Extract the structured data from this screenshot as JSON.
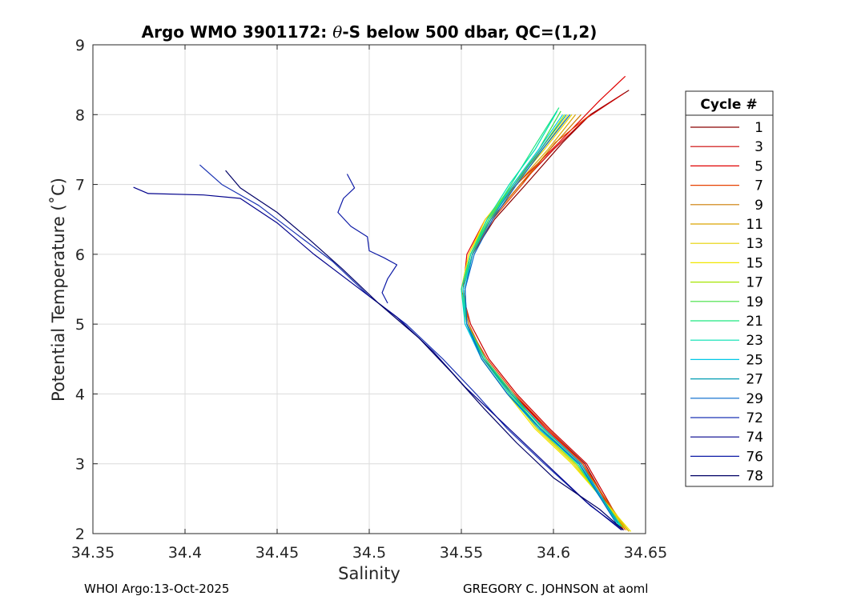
{
  "chart_data": {
    "type": "line",
    "title_parts": {
      "before": "Argo WMO 3901172: ",
      "theta": "θ",
      "after": "-S below 500 dbar,  QC=(1,2)"
    },
    "xlabel": "Salinity",
    "ylabel": "Potential Temperature (˚C)",
    "xlim": [
      34.35,
      34.65
    ],
    "ylim": [
      2,
      9
    ],
    "xticks": [
      "34.35",
      "34.4",
      "34.45",
      "34.5",
      "34.55",
      "34.6",
      "34.65"
    ],
    "yticks": [
      "2",
      "3",
      "4",
      "5",
      "6",
      "7",
      "8",
      "9"
    ],
    "grid": true,
    "legend_title": "Cycle #",
    "legend_position": "outside-right",
    "series": [
      {
        "name": "1",
        "color": "#8b0000",
        "values": [
          [
            34.641,
            8.35
          ],
          [
            34.62,
            8.0
          ],
          [
            34.605,
            7.6
          ],
          [
            34.585,
            7.0
          ],
          [
            34.568,
            6.5
          ],
          [
            34.556,
            6.0
          ],
          [
            34.551,
            5.5
          ],
          [
            34.553,
            5.0
          ],
          [
            34.562,
            4.5
          ],
          [
            34.578,
            4.0
          ],
          [
            34.597,
            3.5
          ],
          [
            34.617,
            3.0
          ],
          [
            34.637,
            2.08
          ]
        ]
      },
      {
        "name": "3",
        "color": "#cc0000",
        "values": [
          [
            34.638,
            8.3
          ],
          [
            34.618,
            7.95
          ],
          [
            34.6,
            7.5
          ],
          [
            34.582,
            7.0
          ],
          [
            34.566,
            6.5
          ],
          [
            34.555,
            6.0
          ],
          [
            34.55,
            5.5
          ],
          [
            34.555,
            5.0
          ],
          [
            34.565,
            4.5
          ],
          [
            34.58,
            4.0
          ],
          [
            34.598,
            3.5
          ],
          [
            34.618,
            3.0
          ],
          [
            34.638,
            2.08
          ]
        ]
      },
      {
        "name": "5",
        "color": "#e00000",
        "values": [
          [
            34.639,
            8.55
          ],
          [
            34.625,
            8.2
          ],
          [
            34.603,
            7.6
          ],
          [
            34.58,
            7.0
          ],
          [
            34.563,
            6.5
          ],
          [
            34.553,
            6.0
          ],
          [
            34.551,
            5.5
          ],
          [
            34.554,
            5.0
          ],
          [
            34.563,
            4.5
          ],
          [
            34.578,
            4.0
          ],
          [
            34.596,
            3.5
          ],
          [
            34.616,
            3.0
          ],
          [
            34.638,
            2.05
          ]
        ]
      },
      {
        "name": "7",
        "color": "#e64000",
        "values": [
          [
            34.62,
            8.0
          ],
          [
            34.601,
            7.6
          ],
          [
            34.583,
            7.0
          ],
          [
            34.567,
            6.5
          ],
          [
            34.556,
            6.0
          ],
          [
            34.551,
            5.5
          ],
          [
            34.553,
            5.0
          ],
          [
            34.564,
            4.5
          ],
          [
            34.579,
            4.0
          ],
          [
            34.597,
            3.5
          ],
          [
            34.616,
            3.0
          ],
          [
            34.639,
            2.05
          ]
        ]
      },
      {
        "name": "9",
        "color": "#cc7a00",
        "values": [
          [
            34.615,
            8.0
          ],
          [
            34.598,
            7.5
          ],
          [
            34.582,
            7.0
          ],
          [
            34.566,
            6.5
          ],
          [
            34.555,
            6.0
          ],
          [
            34.551,
            5.5
          ],
          [
            34.554,
            5.0
          ],
          [
            34.563,
            4.5
          ],
          [
            34.577,
            4.0
          ],
          [
            34.595,
            3.5
          ],
          [
            34.615,
            3.0
          ],
          [
            34.64,
            2.05
          ]
        ]
      },
      {
        "name": "11",
        "color": "#d9a400",
        "values": [
          [
            34.612,
            8.0
          ],
          [
            34.597,
            7.5
          ],
          [
            34.58,
            7.0
          ],
          [
            34.565,
            6.5
          ],
          [
            34.555,
            6.0
          ],
          [
            34.55,
            5.5
          ],
          [
            34.553,
            5.0
          ],
          [
            34.561,
            4.5
          ],
          [
            34.575,
            4.0
          ],
          [
            34.592,
            3.5
          ],
          [
            34.612,
            3.0
          ],
          [
            34.641,
            2.03
          ]
        ]
      },
      {
        "name": "13",
        "color": "#e6d200",
        "values": [
          [
            34.61,
            8.0
          ],
          [
            34.595,
            7.5
          ],
          [
            34.579,
            7.0
          ],
          [
            34.564,
            6.5
          ],
          [
            34.554,
            6.0
          ],
          [
            34.55,
            5.5
          ],
          [
            34.553,
            5.0
          ],
          [
            34.562,
            4.5
          ],
          [
            34.576,
            4.0
          ],
          [
            34.591,
            3.5
          ],
          [
            34.611,
            3.0
          ],
          [
            34.64,
            2.05
          ]
        ]
      },
      {
        "name": "15",
        "color": "#f0e600",
        "values": [
          [
            34.608,
            8.0
          ],
          [
            34.594,
            7.5
          ],
          [
            34.578,
            7.0
          ],
          [
            34.563,
            6.5
          ],
          [
            34.554,
            6.0
          ],
          [
            34.55,
            5.5
          ],
          [
            34.553,
            5.0
          ],
          [
            34.561,
            4.5
          ],
          [
            34.575,
            4.0
          ],
          [
            34.59,
            3.5
          ],
          [
            34.61,
            3.0
          ],
          [
            34.642,
            2.03
          ]
        ]
      },
      {
        "name": "17",
        "color": "#a6e600",
        "values": [
          [
            34.606,
            8.0
          ],
          [
            34.593,
            7.5
          ],
          [
            34.578,
            7.0
          ],
          [
            34.564,
            6.5
          ],
          [
            34.555,
            6.0
          ],
          [
            34.55,
            5.5
          ],
          [
            34.553,
            5.0
          ],
          [
            34.562,
            4.5
          ],
          [
            34.576,
            4.0
          ],
          [
            34.592,
            3.5
          ],
          [
            34.612,
            3.0
          ],
          [
            34.638,
            2.08
          ]
        ]
      },
      {
        "name": "19",
        "color": "#40e040",
        "values": [
          [
            34.604,
            8.05
          ],
          [
            34.592,
            7.5
          ],
          [
            34.578,
            7.0
          ],
          [
            34.565,
            6.5
          ],
          [
            34.555,
            6.0
          ],
          [
            34.551,
            5.5
          ],
          [
            34.553,
            5.0
          ],
          [
            34.563,
            4.5
          ],
          [
            34.577,
            4.0
          ],
          [
            34.593,
            3.5
          ],
          [
            34.613,
            3.0
          ],
          [
            34.637,
            2.1
          ]
        ]
      },
      {
        "name": "21",
        "color": "#1ee680",
        "values": [
          [
            34.603,
            8.1
          ],
          [
            34.591,
            7.6
          ],
          [
            34.577,
            7.0
          ],
          [
            34.565,
            6.5
          ],
          [
            34.556,
            6.0
          ],
          [
            34.551,
            5.5
          ],
          [
            34.553,
            5.0
          ],
          [
            34.563,
            4.5
          ],
          [
            34.578,
            4.0
          ],
          [
            34.594,
            3.5
          ],
          [
            34.614,
            3.0
          ],
          [
            34.637,
            2.1
          ]
        ]
      },
      {
        "name": "23",
        "color": "#00e0b0",
        "values": [
          [
            34.602,
            8.05
          ],
          [
            34.59,
            7.5
          ],
          [
            34.576,
            7.0
          ],
          [
            34.564,
            6.5
          ],
          [
            34.555,
            6.0
          ],
          [
            34.55,
            5.5
          ],
          [
            34.552,
            5.0
          ],
          [
            34.562,
            4.5
          ],
          [
            34.576,
            4.0
          ],
          [
            34.593,
            3.5
          ],
          [
            34.613,
            3.0
          ],
          [
            34.636,
            2.1
          ]
        ]
      },
      {
        "name": "25",
        "color": "#00c8e6",
        "values": [
          [
            34.605,
            8.0
          ],
          [
            34.592,
            7.5
          ],
          [
            34.578,
            7.0
          ],
          [
            34.566,
            6.5
          ],
          [
            34.556,
            6.0
          ],
          [
            34.551,
            5.5
          ],
          [
            34.552,
            5.0
          ],
          [
            34.561,
            4.5
          ],
          [
            34.575,
            4.0
          ],
          [
            34.592,
            3.5
          ],
          [
            34.614,
            3.0
          ],
          [
            34.636,
            2.12
          ]
        ]
      },
      {
        "name": "27",
        "color": "#009cb3",
        "values": [
          [
            34.607,
            8.0
          ],
          [
            34.593,
            7.5
          ],
          [
            34.579,
            7.0
          ],
          [
            34.566,
            6.5
          ],
          [
            34.556,
            6.0
          ],
          [
            34.552,
            5.5
          ],
          [
            34.553,
            5.0
          ],
          [
            34.562,
            4.5
          ],
          [
            34.577,
            4.0
          ],
          [
            34.595,
            3.5
          ],
          [
            34.615,
            3.0
          ],
          [
            34.635,
            2.15
          ]
        ]
      },
      {
        "name": "29",
        "color": "#0066cc",
        "values": [
          [
            34.609,
            8.0
          ],
          [
            34.594,
            7.5
          ],
          [
            34.58,
            7.0
          ],
          [
            34.567,
            6.5
          ],
          [
            34.557,
            6.0
          ],
          [
            34.552,
            5.5
          ],
          [
            34.553,
            5.0
          ],
          [
            34.561,
            4.5
          ],
          [
            34.575,
            4.0
          ],
          [
            34.593,
            3.5
          ],
          [
            34.614,
            3.0
          ],
          [
            34.634,
            2.15
          ]
        ]
      },
      {
        "name": "72",
        "color": "#1a33b3",
        "values": [
          [
            34.408,
            7.28
          ],
          [
            34.42,
            7.0
          ],
          [
            34.44,
            6.7
          ],
          [
            34.46,
            6.3
          ],
          [
            34.48,
            5.9
          ],
          [
            34.5,
            5.4
          ],
          [
            34.52,
            5.0
          ],
          [
            34.54,
            4.5
          ],
          [
            34.558,
            4.0
          ],
          [
            34.575,
            3.5
          ],
          [
            34.595,
            3.0
          ],
          [
            34.62,
            2.4
          ],
          [
            34.638,
            2.05
          ]
        ]
      },
      {
        "name": "74",
        "color": "#00008b",
        "values": [
          [
            34.372,
            6.96
          ],
          [
            34.38,
            6.87
          ],
          [
            34.41,
            6.85
          ],
          [
            34.43,
            6.8
          ],
          [
            34.45,
            6.45
          ],
          [
            34.47,
            6.0
          ],
          [
            34.49,
            5.6
          ],
          [
            34.515,
            5.1
          ],
          [
            34.535,
            4.6
          ],
          [
            34.552,
            4.1
          ],
          [
            34.572,
            3.6
          ],
          [
            34.592,
            3.1
          ],
          [
            34.618,
            2.45
          ],
          [
            34.637,
            2.05
          ]
        ]
      },
      {
        "name": "76",
        "color": "#0d1aa6",
        "values": [
          [
            34.488,
            7.15
          ],
          [
            34.492,
            6.95
          ],
          [
            34.486,
            6.8
          ],
          [
            34.483,
            6.6
          ],
          [
            34.49,
            6.4
          ],
          [
            34.499,
            6.25
          ],
          [
            34.5,
            6.05
          ],
          [
            34.508,
            5.95
          ],
          [
            34.515,
            5.85
          ],
          [
            34.51,
            5.65
          ],
          [
            34.507,
            5.45
          ],
          [
            34.51,
            5.3
          ]
        ]
      },
      {
        "name": "78",
        "color": "#000066",
        "values": [
          [
            34.422,
            7.2
          ],
          [
            34.43,
            6.95
          ],
          [
            34.45,
            6.6
          ],
          [
            34.468,
            6.2
          ],
          [
            34.485,
            5.8
          ],
          [
            34.505,
            5.3
          ],
          [
            34.527,
            4.8
          ],
          [
            34.545,
            4.3
          ],
          [
            34.562,
            3.8
          ],
          [
            34.58,
            3.3
          ],
          [
            34.6,
            2.8
          ],
          [
            34.625,
            2.35
          ],
          [
            34.638,
            2.05
          ]
        ]
      }
    ]
  },
  "footer": {
    "left": "WHOI Argo:13-Oct-2025",
    "right": "GREGORY C. JOHNSON at aoml"
  }
}
